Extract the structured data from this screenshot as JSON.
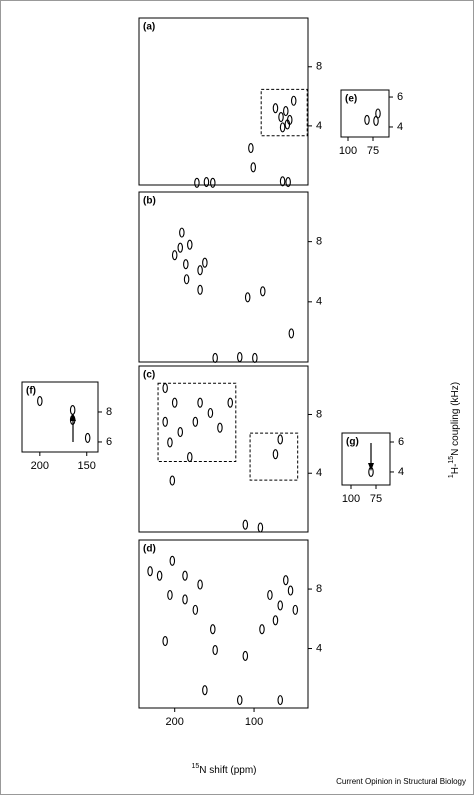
{
  "chart_data": [
    {
      "type": "contour",
      "title": "(a)",
      "color": "#000000",
      "xlim": [
        245,
        32
      ],
      "ylim": [
        0,
        11.3
      ],
      "yticks": [
        4,
        8
      ],
      "x": [
        73,
        66,
        60,
        55,
        50,
        64,
        58,
        104,
        101,
        172,
        160,
        152,
        64,
        57
      ],
      "y": [
        5.2,
        4.6,
        5.0,
        4.4,
        5.7,
        3.9,
        4.1,
        2.5,
        1.2,
        0.15,
        0.2,
        0.15,
        0.25,
        0.2
      ],
      "regions": [
        {
          "x": [
            91,
            33
          ],
          "y": [
            6.47,
            3.33
          ]
        }
      ]
    },
    {
      "type": "contour",
      "title": "(b)",
      "color": "#000000",
      "xlim": [
        245,
        32
      ],
      "ylim": [
        0,
        11.3
      ],
      "yticks": [
        4,
        8
      ],
      "x": [
        191,
        181,
        200,
        186,
        168,
        193,
        162,
        185,
        168,
        89,
        108,
        53,
        149,
        118,
        99
      ],
      "y": [
        8.6,
        7.8,
        7.1,
        6.5,
        6.1,
        7.6,
        6.6,
        5.5,
        4.8,
        4.7,
        4.3,
        1.9,
        0.27,
        0.33,
        0.27
      ]
    },
    {
      "type": "contour",
      "title": "(c)",
      "color": "#000000",
      "xlim": [
        245,
        32
      ],
      "ylim": [
        0,
        11.3
      ],
      "yticks": [
        4,
        8
      ],
      "x": [
        212,
        200,
        212,
        193,
        206,
        181,
        168,
        155,
        143,
        174,
        130,
        67,
        73,
        203,
        111,
        92
      ],
      "y": [
        9.8,
        8.8,
        7.5,
        6.8,
        6.1,
        5.1,
        8.8,
        8.1,
        7.1,
        7.5,
        8.8,
        6.3,
        5.3,
        3.5,
        0.5,
        0.3
      ],
      "regions": [
        {
          "x": [
            221,
            123
          ],
          "y": [
            10.13,
            4.8
          ]
        },
        {
          "x": [
            105,
            45
          ],
          "y": [
            6.73,
            3.53
          ]
        }
      ]
    },
    {
      "type": "contour",
      "title": "(d)",
      "color": "#000000",
      "xlim": [
        245,
        32
      ],
      "ylim": [
        0,
        11.3
      ],
      "yticks": [
        4,
        8
      ],
      "xticks": [
        200,
        100
      ],
      "x": [
        231,
        219,
        203,
        187,
        206,
        187,
        168,
        174,
        152,
        149,
        212,
        80,
        67,
        54,
        73,
        90,
        48,
        60,
        111,
        162,
        118,
        67
      ],
      "y": [
        9.2,
        8.9,
        9.9,
        8.9,
        7.6,
        7.3,
        8.3,
        6.6,
        5.3,
        3.9,
        4.5,
        7.6,
        6.9,
        7.9,
        5.9,
        5.3,
        6.6,
        8.6,
        3.5,
        1.2,
        0.53,
        0.53
      ]
    },
    {
      "type": "contour",
      "title": "(e)",
      "color": "#000000",
      "xlim": [
        107,
        59
      ],
      "ylim": [
        3.33,
        6.47
      ],
      "yticks": [
        4,
        6
      ],
      "xticks": [
        100,
        75
      ],
      "x": [
        81,
        72,
        70
      ],
      "y": [
        4.47,
        4.4,
        4.9
      ]
    },
    {
      "type": "contour",
      "title": "(f)",
      "color": "#000000",
      "xlim": [
        219,
        138
      ],
      "ylim": [
        5.33,
        10
      ],
      "yticks": [
        6,
        8
      ],
      "xticks": [
        200,
        150
      ],
      "x": [
        200,
        165,
        165,
        149
      ],
      "y": [
        8.73,
        8.13,
        7.47,
        6.27
      ]
    },
    {
      "type": "contour",
      "title": "(g)",
      "color": "#000000",
      "xlim": [
        109,
        61
      ],
      "ylim": [
        3.13,
        6.6
      ],
      "yticks": [
        4,
        6
      ],
      "xticks": [
        100,
        75
      ],
      "x": [
        80
      ],
      "y": [
        4.0
      ]
    }
  ],
  "figure": {
    "xlabel": [
      "15",
      "N shift (ppm)"
    ],
    "ylabel": [
      "1",
      "H-",
      "15",
      "N coupling (kHz)"
    ],
    "credit": "Current Opinion in Structural Biology"
  }
}
